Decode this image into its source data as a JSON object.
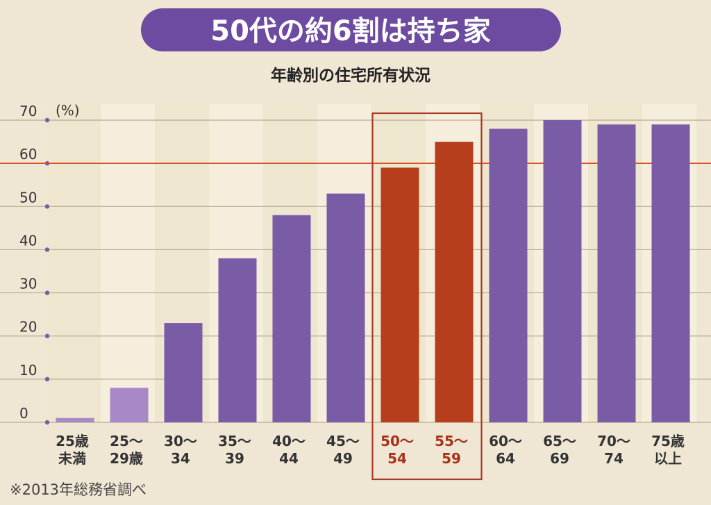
{
  "header": {
    "title": "50代の約6割は持ち家"
  },
  "chart_data": {
    "type": "bar",
    "title": "年齢別の住宅所有状況",
    "unit_label": "(%)",
    "ylim": [
      0,
      70
    ],
    "yticks": [
      0,
      10,
      20,
      30,
      40,
      50,
      60,
      70
    ],
    "reference_line": 60,
    "grid": true,
    "categories": [
      [
        "25歳",
        "未満"
      ],
      [
        "25～",
        "29歳"
      ],
      [
        "30～",
        "34"
      ],
      [
        "35～",
        "39"
      ],
      [
        "40～",
        "44"
      ],
      [
        "45～",
        "49"
      ],
      [
        "50～",
        "54"
      ],
      [
        "55～",
        "59"
      ],
      [
        "60～",
        "64"
      ],
      [
        "65～",
        "69"
      ],
      [
        "70～",
        "74"
      ],
      [
        "75歳",
        "以上"
      ]
    ],
    "values": [
      1,
      8,
      23,
      38,
      48,
      53,
      59,
      65,
      68,
      70,
      69,
      69
    ],
    "highlighted": [
      6,
      7
    ],
    "colors": {
      "bar": "#7a5ba6",
      "bar_light": "#a988c8",
      "highlight": "#b63e1c",
      "highlight_box": "#a83a28",
      "reference_line": "#d84a22",
      "grid": "#b9a992",
      "tick_dot": "#7a5ba6",
      "label": "#333333",
      "label_highlight": "#a83218"
    }
  },
  "footnote": "※2013年総務省調べ"
}
